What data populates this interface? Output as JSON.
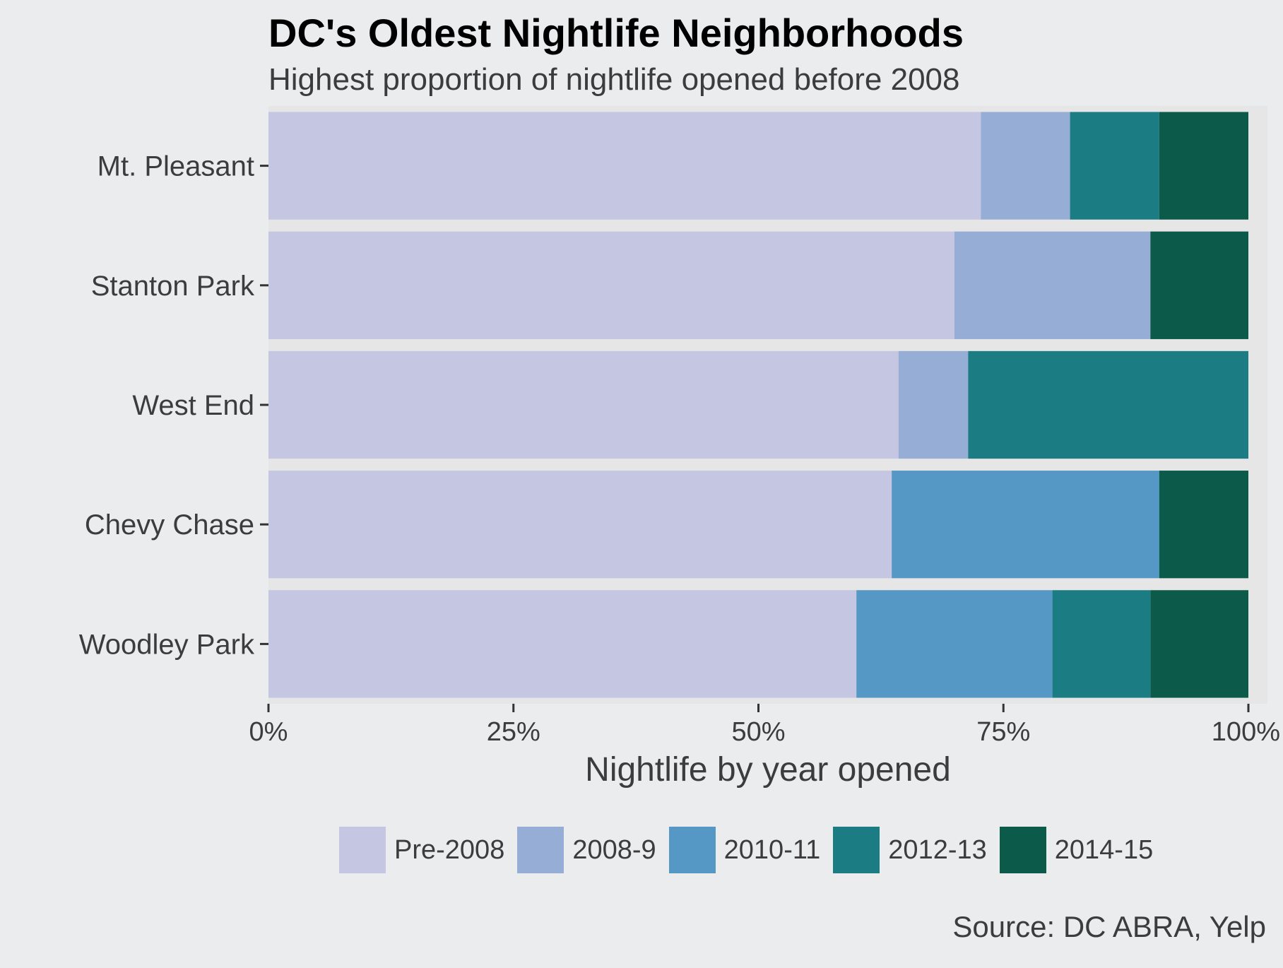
{
  "chart_data": {
    "type": "bar",
    "orientation": "horizontal",
    "stacked": true,
    "title": "DC's Oldest Nightlife Neighborhoods",
    "subtitle": "Highest proportion of nightlife opened before 2008",
    "xlabel": "Nightlife by year opened",
    "ylabel": "",
    "xlim": [
      0,
      100
    ],
    "x_ticks": [
      "0%",
      "25%",
      "50%",
      "75%",
      "100%"
    ],
    "categories": [
      "Mt. Pleasant",
      "Stanton Park",
      "West End",
      "Chevy Chase",
      "Woodley Park"
    ],
    "series": [
      {
        "name": "Pre-2008",
        "color": "#c4c6e2",
        "values": [
          72.7,
          70.0,
          64.3,
          63.6,
          60.0
        ]
      },
      {
        "name": "2008-9",
        "color": "#96aed5",
        "values": [
          9.1,
          20.0,
          7.1,
          0,
          0
        ]
      },
      {
        "name": "2010-11",
        "color": "#5698c5",
        "values": [
          0,
          0,
          0,
          27.3,
          20.0
        ]
      },
      {
        "name": "2012-13",
        "color": "#1c7c84",
        "values": [
          9.1,
          0,
          28.6,
          0,
          10.0
        ]
      },
      {
        "name": "2014-15",
        "color": "#0b5a4a",
        "values": [
          9.1,
          10.0,
          0,
          9.1,
          10.0
        ]
      }
    ],
    "legend_position": "bottom",
    "grid": false,
    "source": "Source: DC ABRA, Yelp"
  }
}
